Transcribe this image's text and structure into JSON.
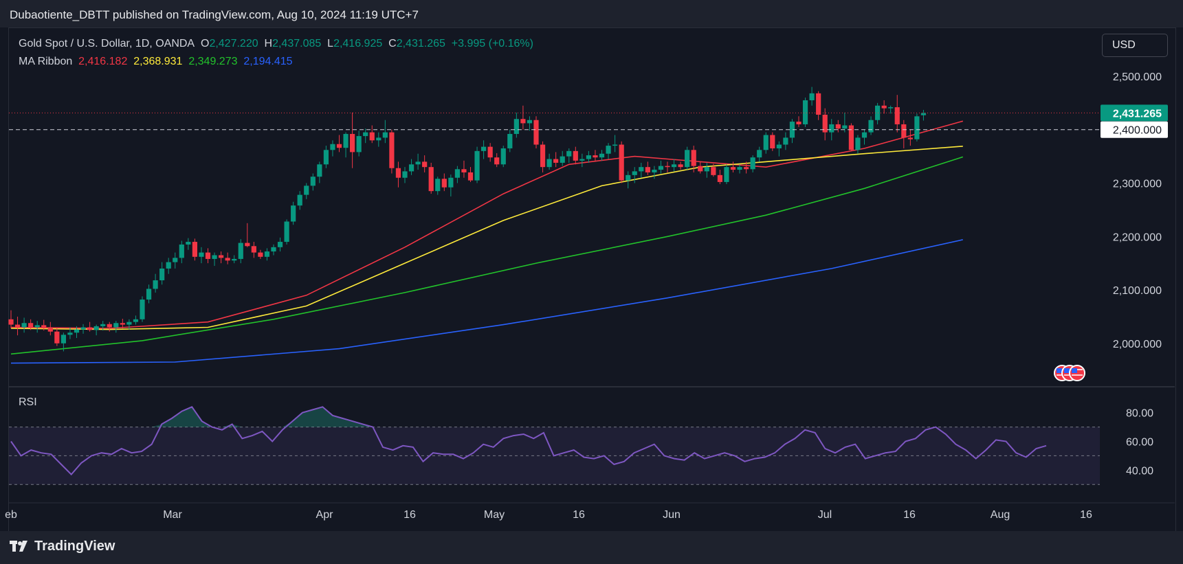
{
  "header": {
    "publisher": "Dubaotiente_DBTT published on TradingView.com, Aug 10, 2024 11:19 UTC+7"
  },
  "legend": {
    "symbol": "Gold Spot / U.S. Dollar, 1D, OANDA",
    "o_key": "O",
    "o_val": "2,427.220",
    "h_key": "H",
    "h_val": "2,437.085",
    "l_key": "L",
    "l_val": "2,416.925",
    "c_key": "C",
    "c_val": "2,431.265",
    "change": "+3.995 (+0.16%)",
    "ma_label": "MA Ribbon",
    "ma_values": [
      "2,416.182",
      "2,368.931",
      "2,349.273",
      "2,194.415"
    ]
  },
  "currency_button": "USD",
  "rsi_label": "RSI",
  "footer": {
    "brand": "TradingView"
  },
  "colors": {
    "bg": "#131722",
    "up": "#089981",
    "down": "#f23645",
    "ma1": "#f23645",
    "ma2": "#ffeb3b",
    "ma3": "#22c32b",
    "ma4": "#2962ff",
    "rsi": "#7e57c2"
  },
  "chart_data": {
    "type": "candlestick",
    "price_axis": {
      "ticks": [
        "2,500.000",
        "2,300.000",
        "2,200.000",
        "2,100.000",
        "2,000.000"
      ],
      "range": [
        1920,
        2590
      ]
    },
    "last_price_label": "2,431.265",
    "alert_level_label": "2,400.000",
    "x_axis_labels": [
      "eb",
      "Mar",
      "Apr",
      "16",
      "May",
      "16",
      "Jun",
      "Jul",
      "16",
      "Aug",
      "16"
    ],
    "rsi_axis": {
      "ticks": [
        "80.00",
        "60.00",
        "40.00"
      ],
      "range": [
        22,
        98
      ],
      "bands": [
        30,
        50,
        70
      ]
    },
    "ohlc": [
      [
        2045,
        2062,
        2028,
        2035
      ],
      [
        2035,
        2050,
        2015,
        2030
      ],
      [
        2030,
        2048,
        2020,
        2038
      ],
      [
        2038,
        2045,
        2025,
        2030
      ],
      [
        2030,
        2042,
        2020,
        2034
      ],
      [
        2034,
        2044,
        2024,
        2028
      ],
      [
        2028,
        2040,
        2015,
        2022
      ],
      [
        2022,
        2030,
        1995,
        2000
      ],
      [
        2000,
        2020,
        1985,
        2016
      ],
      [
        2016,
        2030,
        2008,
        2020
      ],
      [
        2020,
        2032,
        2010,
        2026
      ],
      [
        2026,
        2036,
        2018,
        2030
      ],
      [
        2030,
        2040,
        2022,
        2025
      ],
      [
        2025,
        2035,
        2015,
        2032
      ],
      [
        2032,
        2042,
        2024,
        2036
      ],
      [
        2036,
        2040,
        2022,
        2030
      ],
      [
        2030,
        2042,
        2020,
        2038
      ],
      [
        2038,
        2046,
        2028,
        2035
      ],
      [
        2035,
        2045,
        2026,
        2040
      ],
      [
        2040,
        2052,
        2035,
        2045
      ],
      [
        2045,
        2088,
        2040,
        2082
      ],
      [
        2082,
        2110,
        2075,
        2102
      ],
      [
        2102,
        2130,
        2095,
        2118
      ],
      [
        2118,
        2152,
        2110,
        2140
      ],
      [
        2140,
        2160,
        2130,
        2152
      ],
      [
        2152,
        2170,
        2140,
        2160
      ],
      [
        2160,
        2192,
        2150,
        2185
      ],
      [
        2185,
        2197,
        2175,
        2190
      ],
      [
        2190,
        2196,
        2155,
        2162
      ],
      [
        2162,
        2180,
        2150,
        2170
      ],
      [
        2170,
        2178,
        2150,
        2158
      ],
      [
        2158,
        2170,
        2145,
        2165
      ],
      [
        2165,
        2172,
        2150,
        2160
      ],
      [
        2160,
        2170,
        2148,
        2155
      ],
      [
        2155,
        2165,
        2150,
        2158
      ],
      [
        2158,
        2195,
        2150,
        2188
      ],
      [
        2188,
        2225,
        2180,
        2182
      ],
      [
        2182,
        2190,
        2160,
        2170
      ],
      [
        2170,
        2175,
        2158,
        2162
      ],
      [
        2162,
        2178,
        2155,
        2172
      ],
      [
        2172,
        2185,
        2165,
        2180
      ],
      [
        2180,
        2198,
        2172,
        2190
      ],
      [
        2190,
        2232,
        2185,
        2228
      ],
      [
        2228,
        2265,
        2222,
        2258
      ],
      [
        2258,
        2285,
        2250,
        2278
      ],
      [
        2278,
        2300,
        2270,
        2295
      ],
      [
        2295,
        2318,
        2286,
        2312
      ],
      [
        2312,
        2340,
        2300,
        2335
      ],
      [
        2335,
        2370,
        2328,
        2362
      ],
      [
        2362,
        2380,
        2350,
        2373
      ],
      [
        2373,
        2390,
        2358,
        2366
      ],
      [
        2366,
        2395,
        2348,
        2392
      ],
      [
        2392,
        2432,
        2328,
        2358
      ],
      [
        2358,
        2398,
        2350,
        2388
      ],
      [
        2388,
        2402,
        2375,
        2395
      ],
      [
        2395,
        2408,
        2375,
        2380
      ],
      [
        2380,
        2395,
        2368,
        2385
      ],
      [
        2385,
        2418,
        2375,
        2395
      ],
      [
        2395,
        2400,
        2318,
        2328
      ],
      [
        2328,
        2340,
        2292,
        2310
      ],
      [
        2310,
        2330,
        2300,
        2322
      ],
      [
        2322,
        2345,
        2315,
        2335
      ],
      [
        2335,
        2355,
        2325,
        2340
      ],
      [
        2340,
        2352,
        2320,
        2330
      ],
      [
        2330,
        2338,
        2280,
        2285
      ],
      [
        2285,
        2312,
        2278,
        2308
      ],
      [
        2308,
        2318,
        2285,
        2292
      ],
      [
        2292,
        2316,
        2275,
        2310
      ],
      [
        2310,
        2332,
        2300,
        2326
      ],
      [
        2326,
        2342,
        2310,
        2320
      ],
      [
        2320,
        2330,
        2302,
        2305
      ],
      [
        2305,
        2368,
        2300,
        2360
      ],
      [
        2360,
        2380,
        2345,
        2368
      ],
      [
        2368,
        2375,
        2340,
        2348
      ],
      [
        2348,
        2356,
        2330,
        2335
      ],
      [
        2335,
        2370,
        2330,
        2365
      ],
      [
        2365,
        2400,
        2358,
        2392
      ],
      [
        2392,
        2432,
        2385,
        2420
      ],
      [
        2420,
        2445,
        2400,
        2412
      ],
      [
        2412,
        2425,
        2398,
        2418
      ],
      [
        2418,
        2425,
        2365,
        2372
      ],
      [
        2372,
        2378,
        2320,
        2330
      ],
      [
        2330,
        2355,
        2325,
        2345
      ],
      [
        2345,
        2358,
        2330,
        2338
      ],
      [
        2338,
        2360,
        2332,
        2350
      ],
      [
        2350,
        2365,
        2338,
        2360
      ],
      [
        2360,
        2368,
        2335,
        2342
      ],
      [
        2342,
        2355,
        2330,
        2345
      ],
      [
        2345,
        2360,
        2338,
        2352
      ],
      [
        2352,
        2362,
        2340,
        2348
      ],
      [
        2348,
        2362,
        2342,
        2355
      ],
      [
        2355,
        2375,
        2345,
        2370
      ],
      [
        2370,
        2390,
        2358,
        2372
      ],
      [
        2372,
        2378,
        2300,
        2305
      ],
      [
        2305,
        2322,
        2290,
        2315
      ],
      [
        2315,
        2330,
        2300,
        2322
      ],
      [
        2322,
        2338,
        2310,
        2330
      ],
      [
        2330,
        2340,
        2315,
        2320
      ],
      [
        2320,
        2332,
        2308,
        2325
      ],
      [
        2325,
        2342,
        2318,
        2332
      ],
      [
        2332,
        2340,
        2320,
        2330
      ],
      [
        2330,
        2345,
        2322,
        2335
      ],
      [
        2335,
        2340,
        2325,
        2330
      ],
      [
        2330,
        2368,
        2325,
        2362
      ],
      [
        2362,
        2370,
        2320,
        2332
      ],
      [
        2332,
        2340,
        2318,
        2322
      ],
      [
        2322,
        2338,
        2310,
        2330
      ],
      [
        2330,
        2336,
        2312,
        2315
      ],
      [
        2315,
        2325,
        2298,
        2302
      ],
      [
        2302,
        2335,
        2298,
        2330
      ],
      [
        2330,
        2340,
        2320,
        2325
      ],
      [
        2325,
        2335,
        2318,
        2330
      ],
      [
        2330,
        2340,
        2318,
        2326
      ],
      [
        2326,
        2352,
        2320,
        2348
      ],
      [
        2348,
        2368,
        2340,
        2362
      ],
      [
        2362,
        2395,
        2355,
        2390
      ],
      [
        2390,
        2395,
        2360,
        2365
      ],
      [
        2365,
        2378,
        2350,
        2372
      ],
      [
        2372,
        2395,
        2362,
        2385
      ],
      [
        2385,
        2420,
        2375,
        2415
      ],
      [
        2415,
        2425,
        2405,
        2410
      ],
      [
        2410,
        2460,
        2405,
        2455
      ],
      [
        2455,
        2480,
        2445,
        2468
      ],
      [
        2468,
        2472,
        2418,
        2428
      ],
      [
        2428,
        2440,
        2380,
        2395
      ],
      [
        2395,
        2420,
        2380,
        2410
      ],
      [
        2410,
        2418,
        2395,
        2402
      ],
      [
        2402,
        2432,
        2395,
        2408
      ],
      [
        2408,
        2412,
        2360,
        2362
      ],
      [
        2362,
        2390,
        2355,
        2385
      ],
      [
        2385,
        2400,
        2372,
        2395
      ],
      [
        2395,
        2425,
        2390,
        2418
      ],
      [
        2418,
        2450,
        2410,
        2445
      ],
      [
        2445,
        2455,
        2430,
        2440
      ],
      [
        2440,
        2445,
        2430,
        2442
      ],
      [
        2442,
        2465,
        2395,
        2410
      ],
      [
        2410,
        2418,
        2365,
        2385
      ],
      [
        2385,
        2400,
        2370,
        2382
      ],
      [
        2382,
        2430,
        2378,
        2425
      ],
      [
        2427,
        2437,
        2417,
        2431
      ]
    ],
    "ma_ribbon": [
      {
        "name": "MA1",
        "color": "#f23645",
        "points": [
          [
            0,
            2030
          ],
          [
            15,
            2028
          ],
          [
            30,
            2040
          ],
          [
            45,
            2090
          ],
          [
            60,
            2180
          ],
          [
            75,
            2280
          ],
          [
            85,
            2335
          ],
          [
            95,
            2350
          ],
          [
            105,
            2340
          ],
          [
            115,
            2330
          ],
          [
            130,
            2365
          ],
          [
            145,
            2416
          ]
        ]
      },
      {
        "name": "MA2",
        "color": "#ffeb3b",
        "points": [
          [
            0,
            2028
          ],
          [
            15,
            2026
          ],
          [
            30,
            2030
          ],
          [
            45,
            2070
          ],
          [
            60,
            2150
          ],
          [
            75,
            2230
          ],
          [
            90,
            2295
          ],
          [
            105,
            2330
          ],
          [
            115,
            2340
          ],
          [
            130,
            2355
          ],
          [
            145,
            2369
          ]
        ]
      },
      {
        "name": "MA3",
        "color": "#22c32b",
        "points": [
          [
            0,
            1980
          ],
          [
            20,
            2005
          ],
          [
            40,
            2045
          ],
          [
            60,
            2095
          ],
          [
            80,
            2150
          ],
          [
            100,
            2200
          ],
          [
            115,
            2240
          ],
          [
            130,
            2290
          ],
          [
            145,
            2349
          ]
        ]
      },
      {
        "name": "MA4",
        "color": "#2962ff",
        "points": [
          [
            0,
            1963
          ],
          [
            25,
            1965
          ],
          [
            50,
            1990
          ],
          [
            75,
            2035
          ],
          [
            100,
            2085
          ],
          [
            125,
            2140
          ],
          [
            145,
            2194
          ]
        ]
      }
    ],
    "rsi": [
      60,
      50,
      54,
      52,
      51,
      44,
      37,
      45,
      50,
      52,
      51,
      55,
      52,
      53,
      58,
      72,
      76,
      81,
      84,
      74,
      70,
      68,
      72,
      62,
      64,
      67,
      60,
      68,
      74,
      80,
      82,
      84,
      78,
      76,
      74,
      72,
      70,
      56,
      54,
      57,
      56,
      46,
      52,
      51,
      51,
      48,
      52,
      58,
      56,
      62,
      64,
      65,
      62,
      66,
      50,
      52,
      54,
      49,
      48,
      50,
      44,
      46,
      52,
      55,
      58,
      50,
      48,
      47,
      52,
      48,
      50,
      52,
      50,
      46,
      48,
      49,
      52,
      58,
      62,
      68,
      66,
      55,
      52,
      56,
      58,
      48,
      50,
      52,
      53,
      60,
      62,
      68,
      70,
      65,
      58,
      54,
      48,
      54,
      61,
      60,
      52,
      49,
      55,
      57
    ]
  }
}
